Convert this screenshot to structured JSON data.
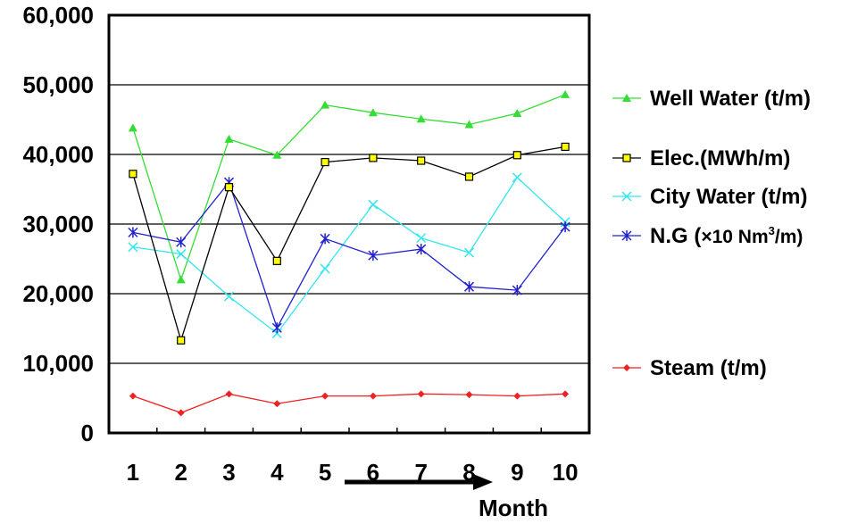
{
  "chart_data": {
    "type": "line",
    "categories": [
      "1",
      "2",
      "3",
      "4",
      "5",
      "6",
      "7",
      "8",
      "9",
      "10"
    ],
    "ylim": [
      0,
      60000
    ],
    "y_ticks": [
      "0",
      "10,000",
      "20,000",
      "30,000",
      "40,000",
      "50,000",
      "60,000"
    ],
    "grid": true,
    "xlabel": "Month",
    "legend_placement": "right",
    "series": [
      {
        "name": "Well Water (t/m)",
        "color": "#33dd33",
        "marker": "triangle",
        "values": [
          43800,
          22000,
          42200,
          39900,
          47100,
          46000,
          45100,
          44300,
          45900,
          48600
        ]
      },
      {
        "name": "Elec.(MWh/m)",
        "color": "#000000",
        "marker": "square",
        "values": [
          37200,
          13300,
          35300,
          24700,
          38900,
          39500,
          39100,
          36800,
          39900,
          41100
        ]
      },
      {
        "name": "City Water (t/m)",
        "color": "#33e6ee",
        "marker": "x",
        "values": [
          26700,
          25700,
          19600,
          14300,
          23600,
          32800,
          28000,
          25900,
          36700,
          30300
        ]
      },
      {
        "name_main": "N.G (",
        "name_sup_prefix": "×10 Nm",
        "name_sup": "3",
        "name_suffix": "/m)",
        "color": "#2222cc",
        "marker": "asterisk",
        "values": [
          28800,
          27400,
          36000,
          15100,
          27900,
          25500,
          26400,
          21000,
          20500,
          29600
        ]
      },
      {
        "name": "Steam (t/m)",
        "color": "#ee2222",
        "marker": "diamond",
        "values": [
          5300,
          2900,
          5600,
          4200,
          5300,
          5300,
          5600,
          5500,
          5300,
          5600
        ]
      }
    ]
  }
}
